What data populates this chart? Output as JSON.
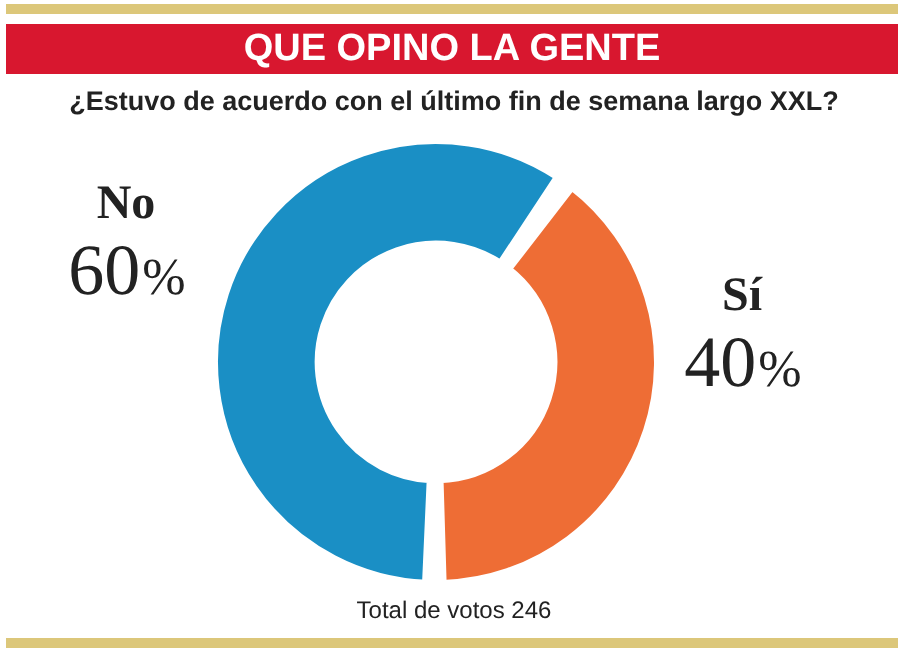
{
  "chart_data": {
    "type": "donut",
    "title": "QUE OPINO LA GENTE",
    "subtitle": "¿Estuvo de acuerdo con el último fin de semana largo XXL?",
    "categories": [
      "Sí",
      "No"
    ],
    "values": [
      40,
      60
    ],
    "colors": [
      "#ee6d35",
      "#1a8fc5"
    ],
    "value_labels": [
      "40%",
      "60%"
    ],
    "annotations": [
      "Total de votos 246"
    ]
  }
}
